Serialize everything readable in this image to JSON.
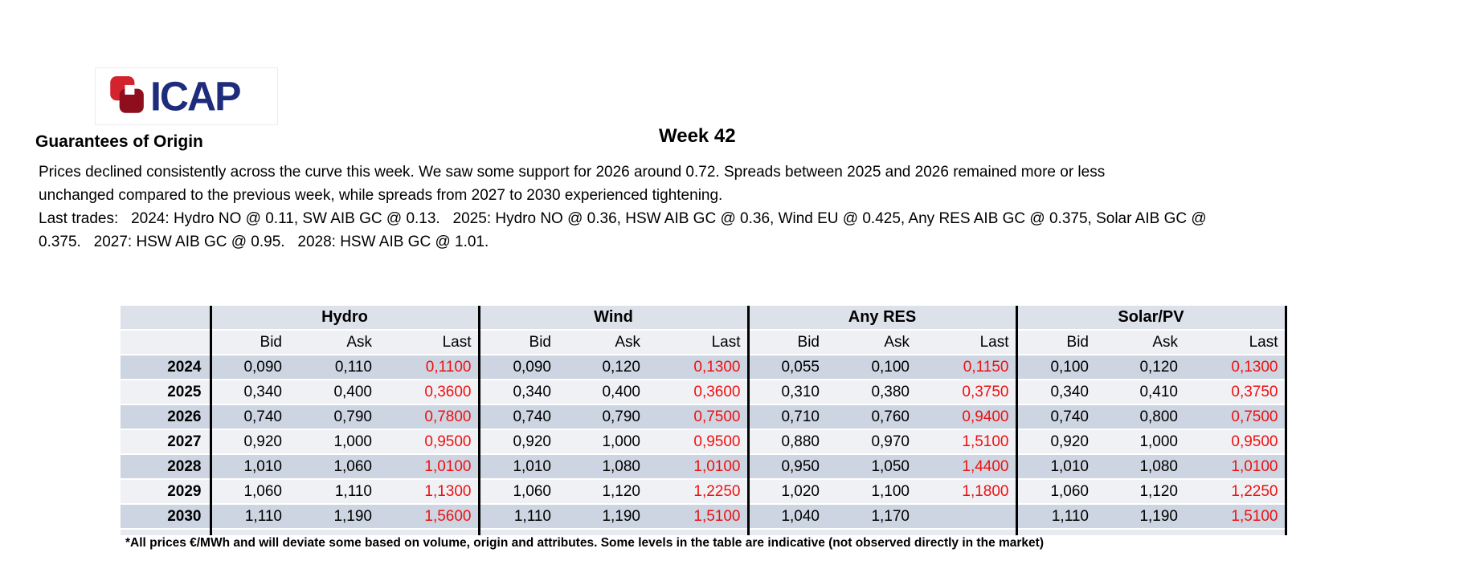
{
  "logo": {
    "text": "ICAP"
  },
  "header": {
    "week_title": "Week 42",
    "report_title": "Guarantees of Origin"
  },
  "commentary": {
    "lines": [
      "Prices declined consistently across the curve this week. We saw some support for 2026 around 0.72. Spreads between 2025 and 2026 remained more or less",
      "unchanged compared to the previous week, while spreads from 2027 to 2030 experienced tightening.",
      "Last trades:   2024: Hydro NO @ 0.11, SW AIB GC @ 0.13.   2025: Hydro NO @ 0.36, HSW AIB GC @ 0.36, Wind EU @ 0.425, Any RES AIB GC @ 0.375, Solar AIB GC @",
      "0.375.   2027: HSW AIB GC @ 0.95.   2028: HSW AIB GC @ 1.01."
    ]
  },
  "table": {
    "groups": [
      "Hydro",
      "Wind",
      "Any RES",
      "Solar/PV"
    ],
    "sub_headers": [
      "Bid",
      "Ask",
      "Last"
    ],
    "rows": [
      {
        "year": "2024",
        "cells": [
          "0,090",
          "0,110",
          "0,1100",
          "0,090",
          "0,120",
          "0,1300",
          "0,055",
          "0,100",
          "0,1150",
          "0,100",
          "0,120",
          "0,1300"
        ]
      },
      {
        "year": "2025",
        "cells": [
          "0,340",
          "0,400",
          "0,3600",
          "0,340",
          "0,400",
          "0,3600",
          "0,310",
          "0,380",
          "0,3750",
          "0,340",
          "0,410",
          "0,3750"
        ]
      },
      {
        "year": "2026",
        "cells": [
          "0,740",
          "0,790",
          "0,7800",
          "0,740",
          "0,790",
          "0,7500",
          "0,710",
          "0,760",
          "0,9400",
          "0,740",
          "0,800",
          "0,7500"
        ]
      },
      {
        "year": "2027",
        "cells": [
          "0,920",
          "1,000",
          "0,9500",
          "0,920",
          "1,000",
          "0,9500",
          "0,880",
          "0,970",
          "1,5100",
          "0,920",
          "1,000",
          "0,9500"
        ]
      },
      {
        "year": "2028",
        "cells": [
          "1,010",
          "1,060",
          "1,0100",
          "1,010",
          "1,080",
          "1,0100",
          "0,950",
          "1,050",
          "1,4400",
          "1,010",
          "1,080",
          "1,0100"
        ]
      },
      {
        "year": "2029",
        "cells": [
          "1,060",
          "1,110",
          "1,1300",
          "1,060",
          "1,120",
          "1,2250",
          "1,020",
          "1,100",
          "1,1800",
          "1,060",
          "1,120",
          "1,2250"
        ]
      },
      {
        "year": "2030",
        "cells": [
          "1,110",
          "1,190",
          "1,5600",
          "1,110",
          "1,190",
          "1,5100",
          "1,040",
          "1,170",
          "",
          "1,110",
          "1,190",
          "1,5100"
        ]
      }
    ],
    "footnote": "*All prices €/MWh and will deviate some based on volume, origin and attributes. Some levels in the table are indicative (not observed directly in the market)"
  },
  "colors": {
    "logo_navy": "#1f2c7c",
    "logo_red_light": "#d2232e",
    "logo_red_dark": "#8f0e1d",
    "header_row": "#dce1ea",
    "subheader_row": "#eef0f4",
    "row_dark": "#ccd5e1",
    "row_light": "#eff1f5",
    "tail_row": "#e7ebf1",
    "last_price": "#ed1111"
  }
}
